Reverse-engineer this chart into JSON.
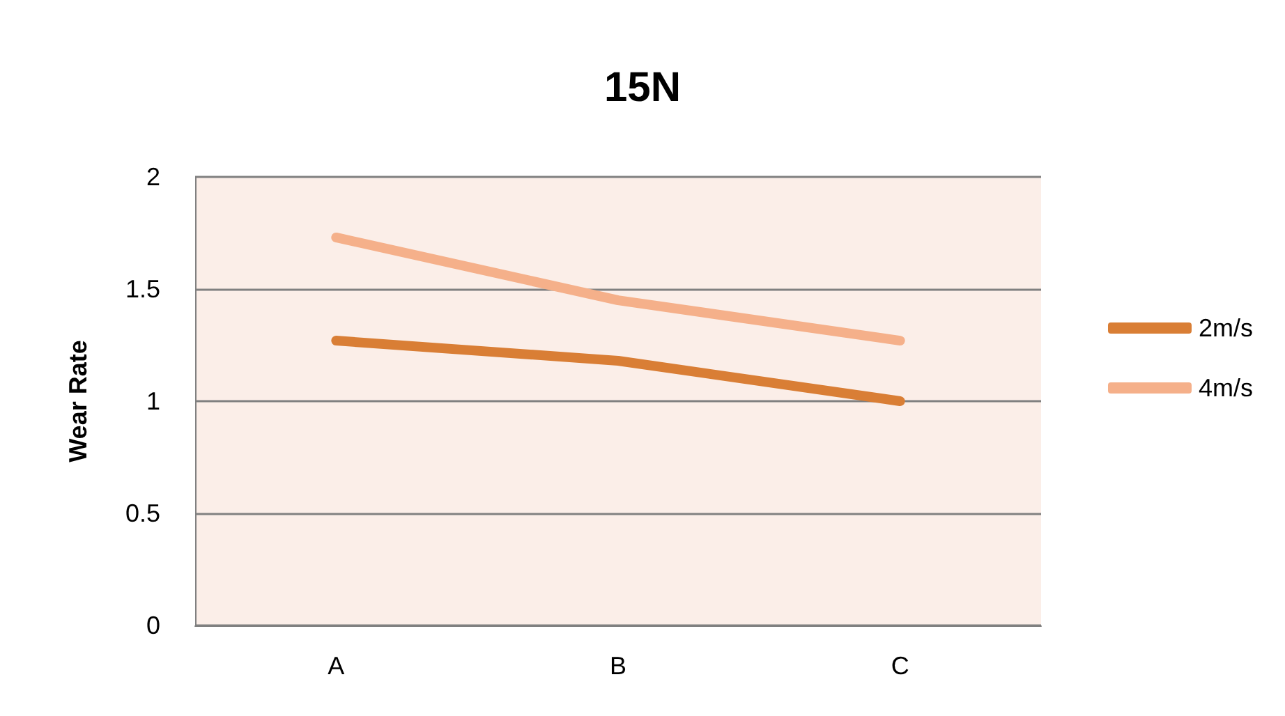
{
  "chart_data": {
    "type": "line",
    "title": "15N",
    "ylabel": "Wear Rate",
    "categories": [
      "A",
      "B",
      "C"
    ],
    "series": [
      {
        "name": "2m/s",
        "color": "#d97e35",
        "values": [
          1.27,
          1.18,
          1.0
        ]
      },
      {
        "name": "4m/s",
        "color": "#f5b08a",
        "values": [
          1.73,
          1.45,
          1.27
        ]
      }
    ],
    "ylim": [
      0,
      2
    ],
    "yticks": [
      0,
      0.5,
      1,
      1.5,
      2
    ],
    "grid": "y",
    "legend": "right",
    "marker": "none",
    "line_style": "solid"
  }
}
